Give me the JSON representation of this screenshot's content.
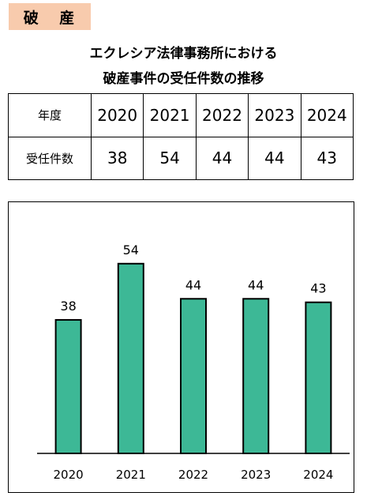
{
  "tag_label": "破 産",
  "title_line1": "エクレシア法律事務所における",
  "title_line2": "破産事件の受任件数の推移",
  "table": {
    "row1_header": "年度",
    "row2_header": "受任件数"
  },
  "colors": {
    "bar": "#3db896",
    "tag_bg": "#f8cbad"
  },
  "chart_data": {
    "type": "bar",
    "title": "",
    "xlabel": "",
    "ylabel": "",
    "categories": [
      "2020",
      "2021",
      "2022",
      "2023",
      "2024"
    ],
    "values": [
      38,
      54,
      44,
      44,
      43
    ],
    "data_labels": [
      "38",
      "54",
      "44",
      "44",
      "43"
    ],
    "ylim": [
      0,
      60
    ],
    "grid": false,
    "legend": "none"
  }
}
